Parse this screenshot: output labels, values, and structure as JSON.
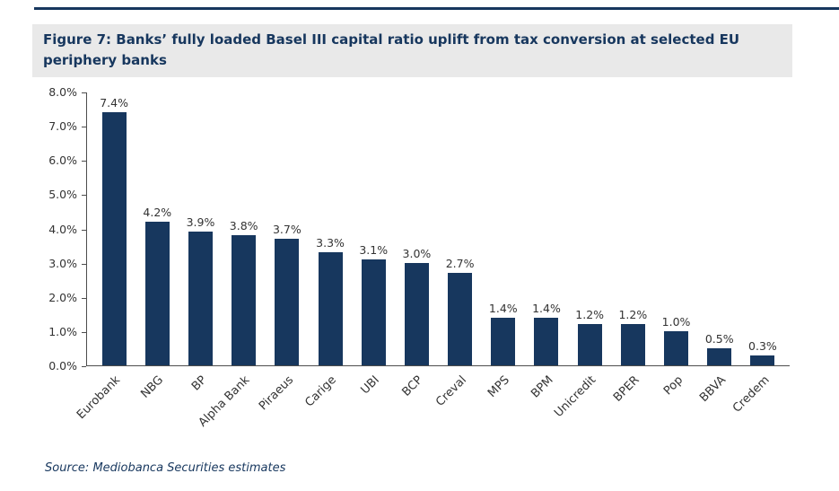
{
  "figure": {
    "title": "Figure 7: Banks’ fully loaded Basel III capital ratio uplift from tax conversion at selected EU periphery banks",
    "source": "Source: Mediobanca Securities estimates"
  },
  "colors": {
    "bar": "#17375E",
    "accent_navy": "#17375E",
    "title_background": "#E9E9E9",
    "axis": "#4D4D4D",
    "tick_text": "#333333"
  },
  "chart_data": {
    "type": "bar",
    "title": "Figure 7: Banks’ fully loaded Basel III capital ratio uplift from tax conversion at selected EU periphery banks",
    "categories": [
      "Eurobank",
      "NBG",
      "BP",
      "Alpha Bank",
      "Piraeus",
      "Carige",
      "UBI",
      "BCP",
      "Creval",
      "MPS",
      "BPM",
      "Unicredit",
      "BPER",
      "Pop",
      "BBVA",
      "Credem"
    ],
    "values": [
      7.4,
      4.2,
      3.9,
      3.8,
      3.7,
      3.3,
      3.1,
      3.0,
      2.7,
      1.4,
      1.4,
      1.2,
      1.2,
      1.0,
      0.5,
      0.3
    ],
    "data_labels": [
      "7.4%",
      "4.2%",
      "3.9%",
      "3.8%",
      "3.7%",
      "3.3%",
      "3.1%",
      "3.0%",
      "2.7%",
      "1.4%",
      "1.4%",
      "1.2%",
      "1.2%",
      "1.0%",
      "0.5%",
      "0.3%"
    ],
    "xlabel": "",
    "ylabel": "",
    "ylim": [
      0,
      8
    ],
    "yticks": [
      "8.0%",
      "7.0%",
      "6.0%",
      "5.0%",
      "4.0%",
      "3.0%",
      "2.0%",
      "1.0%",
      "0.0%"
    ],
    "grid": false,
    "legend": "none",
    "source": "Source: Mediobanca Securities estimates"
  }
}
